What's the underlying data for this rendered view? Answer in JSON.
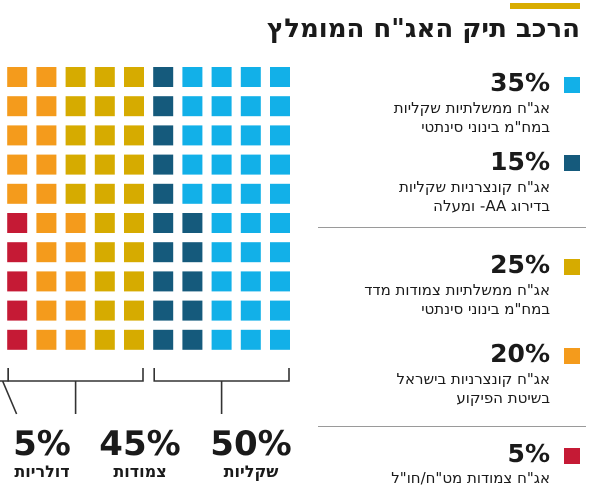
{
  "title": "הרכב תיק האג\"ח המומלץ",
  "colors": {
    "accent": "#d9ad00",
    "cyan": "#12b0e8",
    "navy": "#155a7c",
    "mustard": "#d6ab00",
    "orange": "#f49b1c",
    "red": "#c51a35",
    "bracket": "#333333"
  },
  "legend": [
    {
      "pct": "35%",
      "line1": "אג\"ח ממשלתיות שקליות",
      "line2": "במח\"מ בינוני סינתטי",
      "color": "#12b0e8"
    },
    {
      "pct": "15%",
      "line1": "אג\"ח קונצרניות שקליות",
      "line2": "בדירוג AA- ומעלה",
      "color": "#155a7c"
    },
    {
      "pct": "25%",
      "line1": "אג\"ח ממשלתיות צמודות מדד",
      "line2": "במח\"מ בינוני סינתטי",
      "color": "#d6ab00"
    },
    {
      "pct": "20%",
      "line1": "אג\"ח קונצרניות בישראל",
      "line2": "בשיטת הפיקוע",
      "color": "#f49b1c"
    },
    {
      "pct": "5%",
      "line1": "אג\"ח צמודות מט\"ח/חו\"ל",
      "line2": "",
      "color": "#c51a35"
    }
  ],
  "groups": [
    {
      "pct": "50%",
      "name": "שקליות"
    },
    {
      "pct": "45%",
      "name": "צמודות"
    },
    {
      "pct": "5%",
      "name": "דולריות"
    }
  ],
  "chart_data": {
    "type": "waffle",
    "title": "הרכב תיק האג\"ח המומלץ",
    "grid": {
      "rows": 10,
      "cols": 10,
      "fill_order": "columns from right to left, top to bottom"
    },
    "series": [
      {
        "name": "אג\"ח ממשלתיות שקליות במח\"מ בינוני סינתטי",
        "value": 35,
        "color": "#12b0e8"
      },
      {
        "name": "אג\"ח קונצרניות שקליות בדירוג AA- ומעלה",
        "value": 15,
        "color": "#155a7c"
      },
      {
        "name": "אג\"ח ממשלתיות צמודות מדד במח\"מ בינוני סינתטי",
        "value": 25,
        "color": "#d6ab00"
      },
      {
        "name": "אג\"ח קונצרניות בישראל בשיטת הפיקוע",
        "value": 20,
        "color": "#f49b1c"
      },
      {
        "name": "אג\"ח צמודות מט\"ח/חו\"ל",
        "value": 5,
        "color": "#c51a35"
      }
    ],
    "groups": [
      {
        "name": "שקליות",
        "value": 50
      },
      {
        "name": "צמודות",
        "value": 45
      },
      {
        "name": "דולריות",
        "value": 5
      }
    ]
  }
}
